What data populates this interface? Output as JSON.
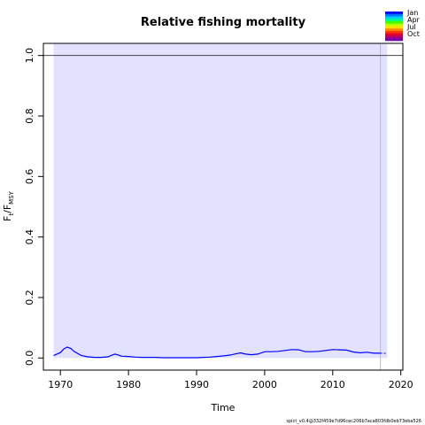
{
  "chart_data": {
    "type": "line",
    "title": "Relative fishing mortality",
    "xlabel": "Time",
    "ylabel": {
      "main": "F",
      "sub1": "t",
      "sep": "/F",
      "sub2": "MSY"
    },
    "xlim": [
      1967.5,
      2020.3
    ],
    "ylim": [
      -0.04,
      1.04
    ],
    "xticks": [
      1970,
      1980,
      1990,
      2000,
      2010,
      2020
    ],
    "yticks": [
      0.0,
      0.2,
      0.4,
      0.6,
      0.8,
      1.0
    ],
    "ytick_labels": [
      "0.0",
      "0.2",
      "0.4",
      "0.6",
      "0.8",
      "1.0"
    ],
    "reference_line": 1.0,
    "ci_band": {
      "x_start": 1969.0,
      "x_end": 2018.0,
      "y_low": 0.0,
      "y_high": 1.04,
      "color": "#e2e2ff"
    },
    "observation_end": 2017.0,
    "series": [
      {
        "color": "#0000ff",
        "x": [
          1969,
          1970,
          1970.5,
          1971,
          1971.5,
          1972,
          1973,
          1974,
          1975,
          1976,
          1977,
          1977.5,
          1978,
          1978.5,
          1979,
          1980,
          1981,
          1982,
          1983,
          1984,
          1985,
          1986,
          1987,
          1988,
          1989,
          1990,
          1991,
          1992,
          1993,
          1994,
          1995,
          1996,
          1996.5,
          1997,
          1998,
          1999,
          2000,
          2001,
          2002,
          2003,
          2004,
          2005,
          2006,
          2007,
          2008,
          2009,
          2010,
          2011,
          2012,
          2013,
          2014,
          2015,
          2016,
          2017
        ],
        "y": [
          0.008,
          0.018,
          0.03,
          0.036,
          0.032,
          0.022,
          0.009,
          0.004,
          0.002,
          0.002,
          0.004,
          0.009,
          0.013,
          0.01,
          0.006,
          0.005,
          0.003,
          0.002,
          0.002,
          0.002,
          0.001,
          0.001,
          0.001,
          0.001,
          0.001,
          0.001,
          0.002,
          0.003,
          0.005,
          0.007,
          0.01,
          0.015,
          0.017,
          0.014,
          0.011,
          0.013,
          0.021,
          0.021,
          0.022,
          0.025,
          0.028,
          0.027,
          0.021,
          0.021,
          0.022,
          0.025,
          0.028,
          0.027,
          0.026,
          0.02,
          0.017,
          0.019,
          0.016,
          0.016
        ]
      }
    ],
    "prediction": {
      "x": [
        2017,
        2018
      ],
      "y": [
        0.016,
        0.015
      ],
      "color": "#0000ff"
    },
    "legend": {
      "placement": "top-right",
      "labels": [
        "Jan",
        "Apr",
        "Jul",
        "Oct"
      ],
      "colors": [
        "#0000ff",
        "#0077ff",
        "#00ccff",
        "#00ff88",
        "#44ff00",
        "#bbff00",
        "#ffdd00",
        "#ff8800",
        "#ff3300",
        "#dd0033",
        "#aa0077",
        "#7700aa"
      ]
    },
    "grid": false
  },
  "footer": {
    "text": "spict_v0.4@332f459e7d96cec206b7aca803fdb0eb73eba526"
  }
}
